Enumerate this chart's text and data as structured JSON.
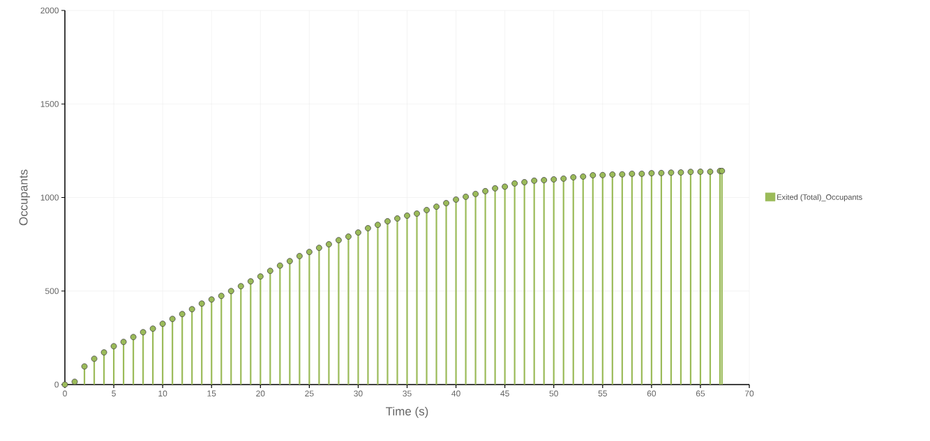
{
  "chart_data": {
    "type": "lollipop",
    "xlabel": "Time (s)",
    "ylabel": "Occupants",
    "x": [
      0,
      1,
      2,
      3,
      4,
      5,
      6,
      7,
      8,
      9,
      10,
      11,
      12,
      13,
      14,
      15,
      16,
      17,
      18,
      19,
      20,
      21,
      22,
      23,
      24,
      25,
      26,
      27,
      28,
      29,
      30,
      31,
      32,
      33,
      34,
      35,
      36,
      37,
      38,
      39,
      40,
      41,
      42,
      43,
      44,
      45,
      46,
      47,
      48,
      49,
      50,
      51,
      52,
      53,
      54,
      55,
      56,
      57,
      58,
      59,
      60,
      61,
      62,
      63,
      64,
      65,
      66,
      67,
      67.2
    ],
    "series": [
      {
        "name": "Exited (Total)_Occupants",
        "color": "#9bbb59",
        "values": [
          0,
          15,
          97,
          138,
          172,
          205,
          228,
          254,
          280,
          299,
          325,
          351,
          377,
          403,
          433,
          455,
          474,
          500,
          526,
          552,
          578,
          608,
          636,
          660,
          687,
          709,
          731,
          750,
          772,
          791,
          813,
          836,
          854,
          873,
          888,
          903,
          914,
          933,
          951,
          970,
          989,
          1004,
          1019,
          1034,
          1049,
          1058,
          1075,
          1082,
          1090,
          1093,
          1097,
          1101,
          1108,
          1112,
          1119,
          1120,
          1123,
          1124,
          1127,
          1127,
          1130,
          1131,
          1133,
          1134,
          1137,
          1138,
          1138,
          1142,
          1142
        ]
      }
    ],
    "xlim": [
      0,
      70
    ],
    "ylim": [
      0,
      2000
    ],
    "xticks": [
      0,
      5,
      10,
      15,
      20,
      25,
      30,
      35,
      40,
      45,
      50,
      55,
      60,
      65,
      70
    ],
    "yticks": [
      0,
      500,
      1000,
      1500,
      2000
    ],
    "grid": true,
    "legend": "right",
    "marker": "circle"
  }
}
